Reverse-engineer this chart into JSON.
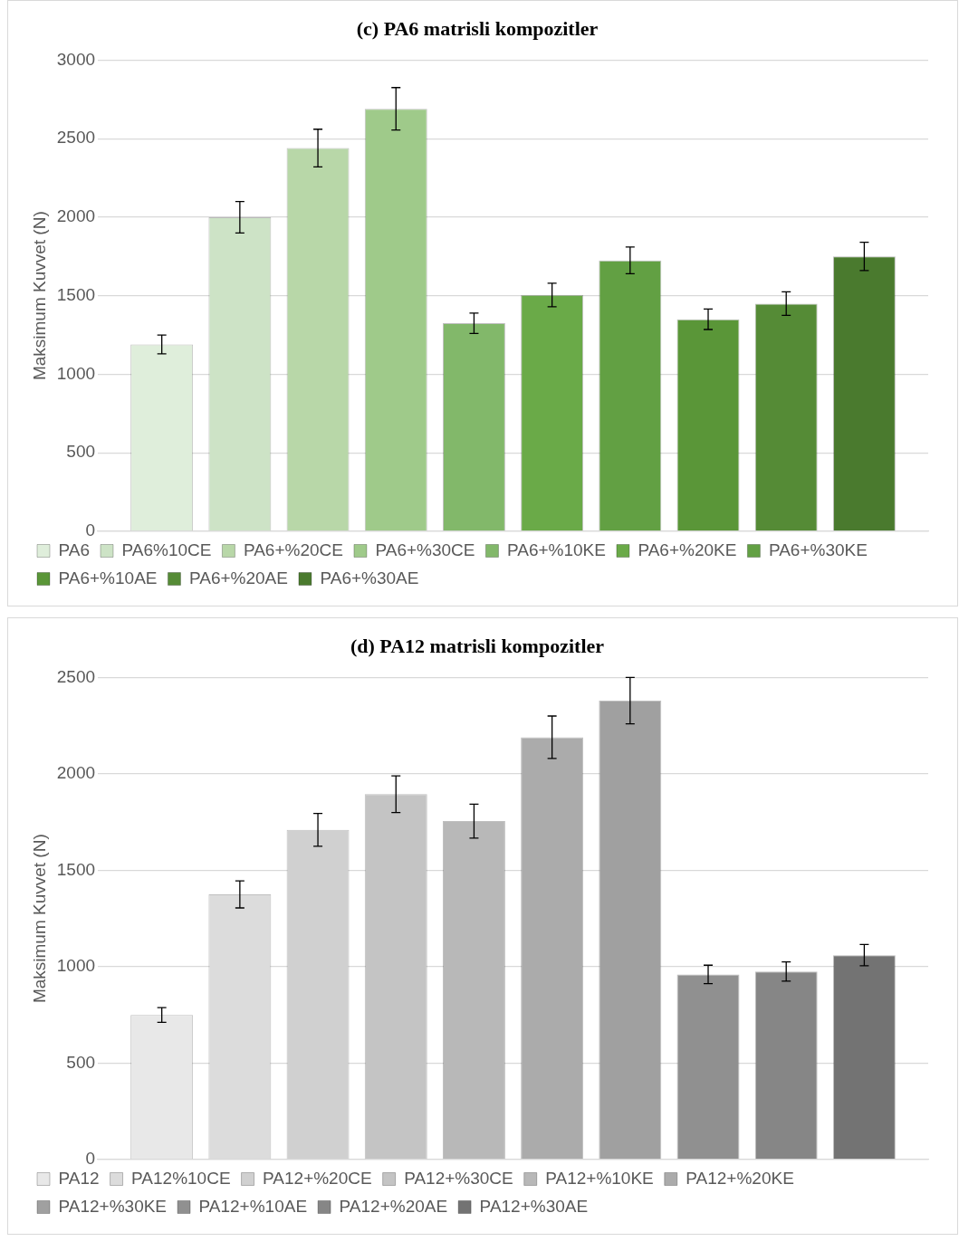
{
  "chart_data": [
    {
      "type": "bar",
      "title": "(c) PA6 matrisli kompozitler",
      "ylabel": "Maksimum Kuvvet (N)",
      "categories": [
        null
      ],
      "series": [
        {
          "name": "PA6",
          "color": "#dfeedb",
          "values": [
            1190
          ],
          "errors": [
            60
          ]
        },
        {
          "name": "PA6%10CE",
          "color": "#cde3c6",
          "values": [
            2000
          ],
          "errors": [
            100
          ]
        },
        {
          "name": "PA6+%20CE",
          "color": "#b8d7a8",
          "values": [
            2440
          ],
          "errors": [
            120
          ]
        },
        {
          "name": "PA6+%30CE",
          "color": "#9fca8a",
          "values": [
            2690
          ],
          "errors": [
            135
          ]
        },
        {
          "name": "PA6+%10KE",
          "color": "#82b86a",
          "values": [
            1325
          ],
          "errors": [
            65
          ]
        },
        {
          "name": "PA6+%20KE",
          "color": "#6aaa48",
          "values": [
            1505
          ],
          "errors": [
            75
          ]
        },
        {
          "name": "PA6+%30KE",
          "color": "#62a043",
          "values": [
            1725
          ],
          "errors": [
            85
          ]
        },
        {
          "name": "PA6+%10AE",
          "color": "#5a9638",
          "values": [
            1350
          ],
          "errors": [
            65
          ]
        },
        {
          "name": "PA6+%20AE",
          "color": "#558b36",
          "values": [
            1450
          ],
          "errors": [
            75
          ]
        },
        {
          "name": "PA6+%30AE",
          "color": "#4a7a2e",
          "values": [
            1750
          ],
          "errors": [
            90
          ]
        }
      ],
      "ylim": [
        0,
        3000
      ],
      "yticks": [
        0,
        500,
        1000,
        1500,
        2000,
        2500,
        3000
      ],
      "grid": "y",
      "legend": "bottom",
      "tick_labels": "y"
    },
    {
      "type": "bar",
      "title": "(d) PA12 matrisli kompozitler",
      "ylabel": "Maksimum Kuvvet (N)",
      "categories": [
        null
      ],
      "series": [
        {
          "name": "PA12",
          "color": "#e8e8e8",
          "values": [
            750
          ],
          "errors": [
            38
          ]
        },
        {
          "name": "PA12%10CE",
          "color": "#dcdcdc",
          "values": [
            1375
          ],
          "errors": [
            70
          ]
        },
        {
          "name": "PA12+%20CE",
          "color": "#d0d0d0",
          "values": [
            1710
          ],
          "errors": [
            85
          ]
        },
        {
          "name": "PA12+%30CE",
          "color": "#c4c4c4",
          "values": [
            1895
          ],
          "errors": [
            95
          ]
        },
        {
          "name": "PA12+%10KE",
          "color": "#b8b8b8",
          "values": [
            1755
          ],
          "errors": [
            88
          ]
        },
        {
          "name": "PA12+%20KE",
          "color": "#ababab",
          "values": [
            2190
          ],
          "errors": [
            110
          ]
        },
        {
          "name": "PA12+%30KE",
          "color": "#a0a0a0",
          "values": [
            2380
          ],
          "errors": [
            120
          ]
        },
        {
          "name": "PA12+%10AE",
          "color": "#909090",
          "values": [
            960
          ],
          "errors": [
            48
          ]
        },
        {
          "name": "PA12+%20AE",
          "color": "#868686",
          "values": [
            975
          ],
          "errors": [
            50
          ]
        },
        {
          "name": "PA12+%30AE",
          "color": "#737373",
          "values": [
            1060
          ],
          "errors": [
            55
          ]
        }
      ],
      "ylim": [
        0,
        2500
      ],
      "yticks": [
        0,
        500,
        1000,
        1500,
        2000,
        2500
      ],
      "grid": "y",
      "legend": "bottom",
      "tick_labels": "y"
    }
  ]
}
